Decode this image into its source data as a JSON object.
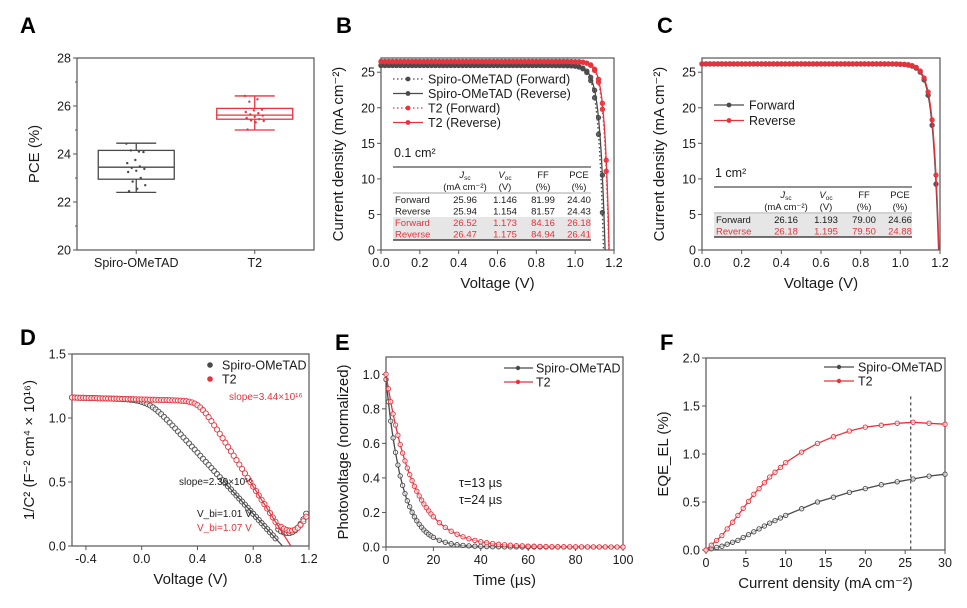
{
  "colors": {
    "black_series": "#4a4a4a",
    "red_series": "#e8323c",
    "axis": "#555555",
    "table_shade": "#e6e6e6"
  },
  "chart_data": [
    {
      "id": "A",
      "panel_label": "A",
      "type": "box",
      "title": "",
      "xlabel": "",
      "ylabel": "PCE (%)",
      "ylim": [
        20,
        28
      ],
      "yticks": [
        "20",
        "22",
        "24",
        "26",
        "28"
      ],
      "categories": [
        "Spiro-OMeTAD",
        "T2"
      ],
      "boxes": [
        {
          "name": "Spiro-OMeTAD",
          "color": "#4a4a4a",
          "min": 22.4,
          "q1": 22.95,
          "median": 23.45,
          "q3": 24.15,
          "max": 24.45,
          "points": [
            24.43,
            24.1,
            24.15,
            24.08,
            23.75,
            23.62,
            23.48,
            23.42,
            23.38,
            23.3,
            23.25,
            23.0,
            22.85,
            22.7,
            22.55,
            22.45
          ]
        },
        {
          "name": "T2",
          "color": "#e8323c",
          "min": 25.0,
          "q1": 25.45,
          "median": 25.62,
          "q3": 25.9,
          "max": 26.42,
          "points": [
            26.42,
            26.28,
            26.18,
            25.85,
            25.82,
            25.75,
            25.7,
            25.65,
            25.6,
            25.55,
            25.5,
            25.45,
            25.4,
            25.38,
            25.32,
            25.02
          ]
        }
      ]
    },
    {
      "id": "B",
      "panel_label": "B",
      "type": "line",
      "xlabel": "Voltage (V)",
      "ylabel": "Current density (mA cm⁻²)",
      "xlim": [
        0,
        1.2
      ],
      "ylim": [
        0,
        27
      ],
      "xticks": [
        "0.0",
        "0.2",
        "0.4",
        "0.6",
        "0.8",
        "1.0",
        "1.2"
      ],
      "yticks": [
        "0",
        "5",
        "10",
        "15",
        "20",
        "25"
      ],
      "series": [
        {
          "name": "Spiro-OMeTAD (Forward)",
          "color": "#4a4a4a",
          "style": "dotted",
          "jsc": 25.96,
          "voc": 1.146,
          "ff": 81.99
        },
        {
          "name": "Spiro-OMeTAD (Reverse)",
          "color": "#4a4a4a",
          "style": "solid",
          "jsc": 25.94,
          "voc": 1.154,
          "ff": 81.57
        },
        {
          "name": "T2 (Forward)",
          "color": "#e8323c",
          "style": "dotted",
          "jsc": 26.52,
          "voc": 1.173,
          "ff": 84.16
        },
        {
          "name": "T2 (Reverse)",
          "color": "#e8323c",
          "style": "solid",
          "jsc": 26.47,
          "voc": 1.175,
          "ff": 84.94
        }
      ],
      "legend_position": "upper-left",
      "area_label": "0.1 cm²",
      "table": {
        "headers": [
          "",
          "J_sc",
          "V_oc",
          "FF",
          "PCE"
        ],
        "header_sub": [
          "",
          "sc",
          "oc",
          "",
          ""
        ],
        "units": [
          "",
          "(mA cm⁻²)",
          "(V)",
          "(%)",
          "(%)"
        ],
        "rows": [
          {
            "label": "Forward",
            "values": [
              "25.96",
              "1.146",
              "81.99",
              "24.40"
            ],
            "color": "#1a1a1a",
            "shaded": false
          },
          {
            "label": "Reverse",
            "values": [
              "25.94",
              "1.154",
              "81.57",
              "24.43"
            ],
            "color": "#1a1a1a",
            "shaded": false
          },
          {
            "label": "Forward",
            "values": [
              "26.52",
              "1.173",
              "84.16",
              "26.18"
            ],
            "color": "#e8323c",
            "shaded": true
          },
          {
            "label": "Reverse",
            "values": [
              "26.47",
              "1.175",
              "84.94",
              "26.41"
            ],
            "color": "#e8323c",
            "shaded": true
          }
        ]
      }
    },
    {
      "id": "C",
      "panel_label": "C",
      "type": "line",
      "xlabel": "Voltage (V)",
      "ylabel": "Current density (mA cm⁻²)",
      "xlim": [
        0,
        1.2
      ],
      "ylim": [
        0,
        27
      ],
      "xticks": [
        "0.0",
        "0.2",
        "0.4",
        "0.6",
        "0.8",
        "1.0",
        "1.2"
      ],
      "yticks": [
        "0",
        "5",
        "10",
        "15",
        "20",
        "25"
      ],
      "series": [
        {
          "name": "Forward",
          "color": "#4a4a4a",
          "style": "solid",
          "jsc": 26.16,
          "voc": 1.193,
          "ff": 79.0
        },
        {
          "name": "Reverse",
          "color": "#e8323c",
          "style": "solid",
          "jsc": 26.18,
          "voc": 1.195,
          "ff": 79.5
        }
      ],
      "legend_position": "upper-left",
      "area_label": "1 cm²",
      "table": {
        "headers": [
          "",
          "J_sc",
          "V_oc",
          "FF",
          "PCE"
        ],
        "units": [
          "",
          "(mA cm⁻²)",
          "(V)",
          "(%)",
          "(%)"
        ],
        "rows": [
          {
            "label": "Forward",
            "values": [
              "26.16",
              "1.193",
              "79.00",
              "24.66"
            ],
            "color": "#1a1a1a",
            "shaded": true
          },
          {
            "label": "Reverse",
            "values": [
              "26.18",
              "1.195",
              "79.50",
              "24.88"
            ],
            "color": "#e8323c",
            "shaded": true
          }
        ]
      }
    },
    {
      "id": "D",
      "panel_label": "D",
      "type": "scatter",
      "xlabel": "Voltage (V)",
      "ylabel": "1/C² (F⁻² cm⁴ × 10¹⁶)",
      "xlim": [
        -0.5,
        1.2
      ],
      "ylim": [
        0,
        1.5
      ],
      "xticks": [
        "-0.4",
        "0.0",
        "0.4",
        "0.8",
        "1.2"
      ],
      "xtick_values": [
        -0.4,
        0.0,
        0.4,
        0.8,
        1.2
      ],
      "yticks": [
        "0.0",
        "0.5",
        "1.0",
        "1.5"
      ],
      "series": [
        {
          "name": "Spiro-OMeTAD",
          "color": "#4a4a4a",
          "plateau": 1.16,
          "vbi": 1.01,
          "slope_text": "slope=2.39×10¹⁶",
          "min_v": 1.05,
          "min_y": 0.1
        },
        {
          "name": "T2",
          "color": "#e8323c",
          "plateau": 1.16,
          "vbi": 1.07,
          "slope_text": "slope=3.44×10¹⁶",
          "min_v": 1.07,
          "min_y": 0.12
        }
      ],
      "annotations": [
        "slope=3.44×10¹⁶",
        "slope=2.39×10¹⁶",
        "V_bi=1.01 V",
        "V_bi=1.07 V"
      ],
      "legend_position": "top-right"
    },
    {
      "id": "E",
      "panel_label": "E",
      "type": "line",
      "xlabel": "Time (µs)",
      "ylabel": "Photovoltage (normalized)",
      "xlim": [
        0,
        100
      ],
      "ylim": [
        0,
        1.1
      ],
      "xticks": [
        "0",
        "20",
        "40",
        "60",
        "80",
        "100"
      ],
      "yticks": [
        "0.0",
        "0.2",
        "0.4",
        "0.6",
        "0.8",
        "1.0"
      ],
      "series": [
        {
          "name": "Spiro-OMeTAD",
          "color": "#4a4a4a",
          "tau_us": 13,
          "decay_const": 7.0
        },
        {
          "name": "T2",
          "color": "#e8323c",
          "tau_us": 24,
          "decay_const": 11.5
        }
      ],
      "annotations": [
        "τ=13 µs",
        "τ=24 µs"
      ],
      "legend_position": "top-right"
    },
    {
      "id": "F",
      "panel_label": "F",
      "type": "line",
      "xlabel": "Current density (mA cm⁻²)",
      "ylabel": "EQE_EL (%)",
      "xlim": [
        0,
        30
      ],
      "ylim": [
        0,
        2.0
      ],
      "xticks": [
        "0",
        "5",
        "10",
        "15",
        "20",
        "25",
        "30"
      ],
      "yticks": [
        "0.0",
        "0.5",
        "1.0",
        "1.5",
        "2.0"
      ],
      "series": [
        {
          "name": "Spiro-OMeTAD",
          "color": "#4a4a4a",
          "x": [
            0,
            2,
            4,
            6,
            8,
            10,
            12,
            14,
            16,
            18,
            20,
            22,
            24,
            26,
            28,
            30
          ],
          "y": [
            0,
            0.04,
            0.1,
            0.19,
            0.28,
            0.36,
            0.43,
            0.5,
            0.55,
            0.6,
            0.64,
            0.68,
            0.71,
            0.74,
            0.77,
            0.79
          ]
        },
        {
          "name": "T2",
          "color": "#e8323c",
          "x": [
            0,
            2,
            4,
            6,
            8,
            10,
            12,
            14,
            16,
            18,
            20,
            22,
            24,
            26,
            28,
            30
          ],
          "y": [
            0,
            0.15,
            0.36,
            0.58,
            0.76,
            0.91,
            1.02,
            1.11,
            1.18,
            1.24,
            1.28,
            1.3,
            1.32,
            1.33,
            1.32,
            1.31
          ]
        }
      ],
      "reference_line_x": 25.7,
      "legend_position": "top-right"
    }
  ]
}
